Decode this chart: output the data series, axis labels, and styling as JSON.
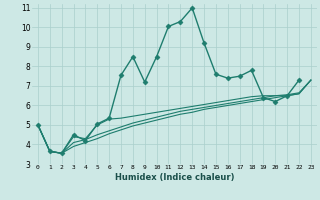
{
  "title": "",
  "xlabel": "Humidex (Indice chaleur)",
  "background_color": "#cde8e5",
  "grid_color": "#aacfcc",
  "line_color": "#1e7d6e",
  "xlim": [
    -0.5,
    23.5
  ],
  "ylim": [
    3,
    11.2
  ],
  "xticks": [
    0,
    1,
    2,
    3,
    4,
    5,
    6,
    7,
    8,
    9,
    10,
    11,
    12,
    13,
    14,
    15,
    16,
    17,
    18,
    19,
    20,
    21,
    22,
    23
  ],
  "yticks": [
    3,
    4,
    5,
    6,
    7,
    8,
    9,
    10,
    11
  ],
  "series": [
    {
      "x": [
        0,
        1,
        2,
        3,
        4,
        5,
        6,
        7,
        8,
        9,
        10,
        11,
        12,
        13,
        14,
        15,
        16,
        17,
        18,
        19,
        20,
        21,
        22
      ],
      "y": [
        5.0,
        3.65,
        3.55,
        4.5,
        4.2,
        5.05,
        5.35,
        7.55,
        8.5,
        7.2,
        8.5,
        10.05,
        10.3,
        11.0,
        9.2,
        7.6,
        7.4,
        7.5,
        7.8,
        6.4,
        6.2,
        6.5,
        7.3
      ],
      "marker": "D",
      "markersize": 2.5,
      "linewidth": 1.0,
      "has_marker": true
    },
    {
      "x": [
        0,
        1,
        2,
        3,
        4,
        5,
        6,
        7,
        8,
        9,
        10,
        11,
        12,
        13,
        14,
        15,
        16,
        17,
        18,
        19,
        20,
        21,
        22,
        23
      ],
      "y": [
        5.0,
        3.65,
        3.55,
        3.9,
        4.1,
        4.3,
        4.55,
        4.75,
        4.95,
        5.1,
        5.25,
        5.4,
        5.55,
        5.65,
        5.8,
        5.9,
        6.0,
        6.1,
        6.2,
        6.3,
        6.4,
        6.5,
        6.6,
        7.3
      ],
      "marker": null,
      "markersize": 0,
      "linewidth": 0.8,
      "has_marker": false
    },
    {
      "x": [
        0,
        1,
        2,
        3,
        4,
        5,
        6,
        7,
        8,
        9,
        10,
        11,
        12,
        13,
        14,
        15,
        16,
        17,
        18,
        19,
        20,
        21,
        22,
        23
      ],
      "y": [
        5.0,
        3.65,
        3.55,
        4.1,
        4.25,
        4.5,
        4.7,
        4.9,
        5.1,
        5.25,
        5.4,
        5.55,
        5.7,
        5.8,
        5.9,
        6.0,
        6.1,
        6.2,
        6.3,
        6.4,
        6.5,
        6.55,
        6.65,
        7.3
      ],
      "marker": null,
      "markersize": 0,
      "linewidth": 0.8,
      "has_marker": false
    },
    {
      "x": [
        0,
        1,
        2,
        3,
        4,
        5,
        6,
        7,
        8,
        9,
        10,
        11,
        12,
        13,
        14,
        15,
        16,
        17,
        18,
        19,
        20,
        21,
        22,
        23
      ],
      "y": [
        5.0,
        3.65,
        3.55,
        4.4,
        4.3,
        5.0,
        5.3,
        5.35,
        5.45,
        5.55,
        5.65,
        5.75,
        5.85,
        5.95,
        6.05,
        6.15,
        6.25,
        6.35,
        6.45,
        6.5,
        6.5,
        6.5,
        6.6,
        7.3
      ],
      "marker": null,
      "markersize": 0,
      "linewidth": 0.8,
      "has_marker": false
    }
  ]
}
